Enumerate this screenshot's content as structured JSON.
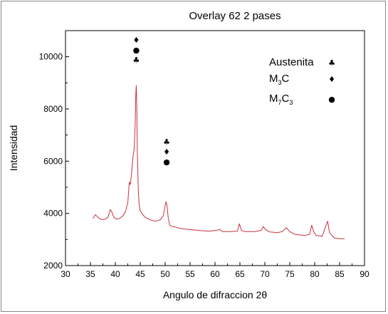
{
  "chart_data": {
    "type": "line",
    "title": "Overlay 62 2 pases",
    "xlabel": "Angulo de difraccion 2θ",
    "ylabel": "Intensidad",
    "xlim": [
      30,
      90
    ],
    "ylim": [
      2000,
      11000
    ],
    "x_ticks": [
      30,
      35,
      40,
      45,
      50,
      55,
      60,
      65,
      70,
      75,
      80,
      85,
      90
    ],
    "y_ticks": [
      2000,
      4000,
      6000,
      8000,
      10000
    ],
    "grid": false,
    "legend_position": "top-right",
    "series": [
      {
        "color": "#c8323c",
        "x": [
          35.5,
          36.0,
          36.5,
          37.0,
          37.5,
          38.0,
          38.5,
          39.0,
          39.3,
          39.7,
          40.2,
          40.8,
          41.5,
          42.0,
          42.5,
          42.8,
          43.0,
          43.2,
          43.5,
          43.8,
          44.0,
          44.1,
          44.2,
          44.3,
          44.4,
          44.5,
          44.6,
          44.8,
          45.0,
          45.5,
          46.0,
          47.0,
          48.0,
          49.0,
          49.6,
          50.0,
          50.2,
          50.4,
          50.6,
          50.9,
          51.3,
          52.0,
          53.0,
          55.0,
          57.0,
          59.0,
          60.5,
          61.0,
          61.5,
          63.0,
          64.5,
          64.9,
          65.3,
          66.0,
          68.0,
          69.3,
          69.7,
          70.1,
          71.0,
          72.5,
          73.5,
          74.3,
          75.0,
          76.0,
          78.0,
          79.0,
          79.4,
          79.8,
          80.3,
          81.5,
          82.3,
          82.6,
          83.0,
          84.0,
          85.0,
          86.0
        ],
        "y": [
          3800,
          3950,
          3850,
          3780,
          3760,
          3780,
          3850,
          4150,
          4050,
          3850,
          3780,
          3800,
          3900,
          4050,
          4400,
          5200,
          5100,
          5400,
          6100,
          6500,
          7500,
          8500,
          8900,
          8200,
          6400,
          5800,
          4900,
          4300,
          4100,
          3950,
          3850,
          3750,
          3700,
          3750,
          3900,
          4300,
          4450,
          4250,
          3850,
          3550,
          3500,
          3480,
          3420,
          3380,
          3340,
          3320,
          3360,
          3380,
          3300,
          3300,
          3320,
          3600,
          3350,
          3300,
          3300,
          3350,
          3500,
          3380,
          3290,
          3260,
          3300,
          3450,
          3300,
          3200,
          3150,
          3200,
          3550,
          3300,
          3150,
          3120,
          3550,
          3700,
          3250,
          3050,
          3030,
          3030
        ]
      }
    ],
    "legend": [
      {
        "text": "Austenita",
        "symbol": "♣"
      },
      {
        "text": "M",
        "sub": "3",
        "text2": "C",
        "symbol": "♦"
      },
      {
        "text": "M",
        "sub": "7",
        "text2": "C",
        "sub2": "3",
        "symbol": "●"
      }
    ],
    "annotations": [
      {
        "x": 44.2,
        "symbols": [
          "♦",
          "●",
          "♣"
        ]
      },
      {
        "x": 50.3,
        "symbols": [
          "♣",
          "♦",
          "●"
        ]
      }
    ]
  }
}
